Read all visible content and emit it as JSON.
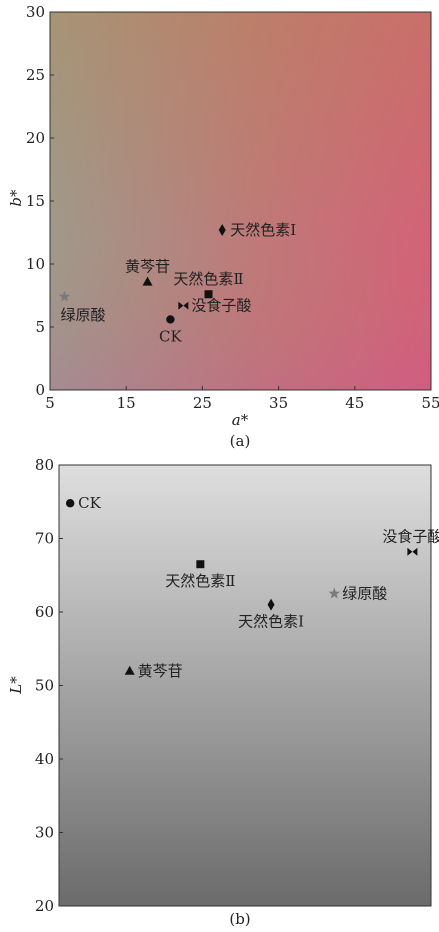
{
  "chart_data": [
    {
      "type": "scatter",
      "panel_label": "(a)",
      "xlabel": "a*",
      "ylabel": "b*",
      "xlim": [
        5,
        55
      ],
      "ylim": [
        0,
        30
      ],
      "xticks": [
        5,
        15,
        25,
        35,
        45,
        55
      ],
      "yticks": [
        0,
        5,
        10,
        15,
        20,
        25,
        30
      ],
      "background": "color gradient: olive-gray (top-left) to red (top-right) to pink (bottom-right), gray at bottom-left",
      "gradient_colors": {
        "top_left": "#a08a6e",
        "top_right": "#d8656a",
        "bottom_left": "#9a9a94",
        "bottom_right": "#cf5a8c"
      },
      "points": [
        {
          "label": "CK",
          "marker": "circle",
          "x": 20.8,
          "y": 5.6,
          "label_pos": "below"
        },
        {
          "label": "绿原酸",
          "marker": "star",
          "x": 6.9,
          "y": 7.4,
          "label_pos": "below-right"
        },
        {
          "label": "黄芩苷",
          "marker": "triangle",
          "x": 17.8,
          "y": 8.6,
          "label_pos": "above"
        },
        {
          "label": "没食子酸",
          "marker": "bowtie",
          "x": 22.5,
          "y": 6.7,
          "label_pos": "right"
        },
        {
          "label": "天然色素Ⅱ",
          "marker": "square",
          "x": 25.8,
          "y": 7.6,
          "label_pos": "above"
        },
        {
          "label": "天然色素Ⅰ",
          "marker": "diamond",
          "x": 27.6,
          "y": 12.7,
          "label_pos": "right"
        }
      ]
    },
    {
      "type": "scatter",
      "panel_label": "(b)",
      "xlabel": "",
      "ylabel": "L*",
      "xlim": [
        0,
        100
      ],
      "ylim": [
        20,
        80
      ],
      "xticks": [],
      "yticks": [
        20,
        30,
        40,
        50,
        60,
        70,
        80
      ],
      "background": "vertical gradient: light gray (top) to dark gray (bottom)",
      "gradient_colors": {
        "top": "#dcdcdc",
        "bottom": "#6e6e6e"
      },
      "points": [
        {
          "label": "CK",
          "marker": "circle",
          "x": 3,
          "y": 74.8,
          "label_pos": "right"
        },
        {
          "label": "天然色素Ⅱ",
          "marker": "square",
          "x": 38,
          "y": 66.5,
          "label_pos": "below"
        },
        {
          "label": "天然色素Ⅰ",
          "marker": "diamond",
          "x": 57,
          "y": 61.0,
          "label_pos": "below"
        },
        {
          "label": "绿原酸",
          "marker": "star",
          "x": 74,
          "y": 62.5,
          "label_pos": "right"
        },
        {
          "label": "没食子酸",
          "marker": "bowtie",
          "x": 95,
          "y": 68.2,
          "label_pos": "above"
        },
        {
          "label": "黄芩苷",
          "marker": "triangle",
          "x": 19,
          "y": 52.0,
          "label_pos": "right"
        }
      ]
    }
  ]
}
